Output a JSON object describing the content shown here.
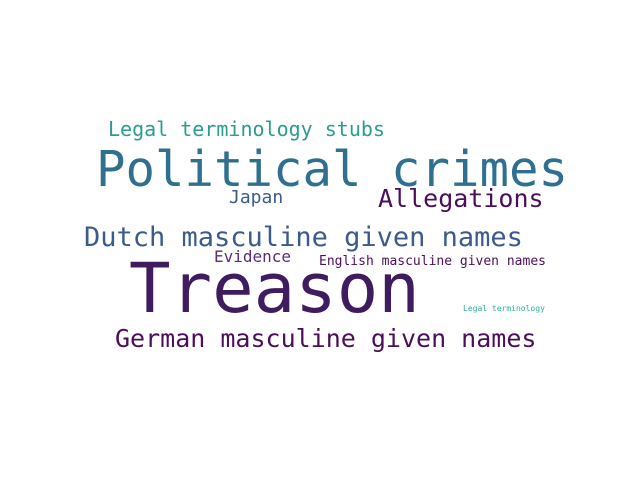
{
  "words": [
    {
      "text": "Legal terminology stubs",
      "color": "#2a9d8f"
    },
    {
      "text": "Political crimes",
      "color": "#2f6f8f"
    },
    {
      "text": "Allegations",
      "color": "#4b0f5a"
    },
    {
      "text": "Japan",
      "color": "#3b5b8c"
    },
    {
      "text": "Dutch masculine given names",
      "color": "#3b5b8c"
    },
    {
      "text": "Evidence",
      "color": "#5a2d7a"
    },
    {
      "text": "English masculine given names",
      "color": "#4b0f5a"
    },
    {
      "text": "Treason",
      "color": "#3f1b5f"
    },
    {
      "text": "Legal terminology",
      "color": "#27b19b"
    },
    {
      "text": "German masculine given names",
      "color": "#4b0f5a"
    }
  ]
}
